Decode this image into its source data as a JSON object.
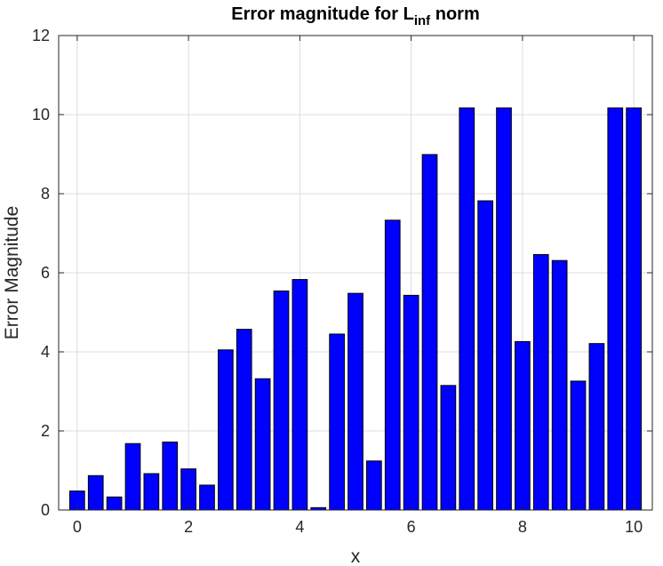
{
  "chart_data": {
    "type": "bar",
    "title": "Error magnitude for L",
    "title_subscript": "inf",
    "title_suffix": " norm",
    "xlabel": "x",
    "ylabel": "Error Magnitude",
    "xlim": [
      -0.333,
      10.333
    ],
    "ylim": [
      0,
      12
    ],
    "xticks": [
      0,
      2,
      4,
      6,
      8,
      10
    ],
    "yticks": [
      0,
      2,
      4,
      6,
      8,
      10,
      12
    ],
    "grid": true,
    "bar_width": 0.2667,
    "bar_color": "#0000ff",
    "edge_color": "#000000",
    "x": [
      0,
      0.3333,
      0.6667,
      1.0,
      1.3333,
      1.6667,
      2.0,
      2.3333,
      2.6667,
      3.0,
      3.3333,
      3.6667,
      4.0,
      4.3333,
      4.6667,
      5.0,
      5.3333,
      5.6667,
      6.0,
      6.3333,
      6.6667,
      7.0,
      7.3333,
      7.6667,
      8.0,
      8.3333,
      8.6667,
      9.0,
      9.3333,
      9.6667,
      10.0
    ],
    "values": [
      0.48,
      0.87,
      0.33,
      1.68,
      0.92,
      1.72,
      1.04,
      0.63,
      4.05,
      4.57,
      3.32,
      5.54,
      5.83,
      0.06,
      4.45,
      5.48,
      1.24,
      7.33,
      5.43,
      8.99,
      3.15,
      10.17,
      7.82,
      10.17,
      4.26,
      6.46,
      6.31,
      3.26,
      4.21,
      10.17,
      10.17
    ]
  }
}
